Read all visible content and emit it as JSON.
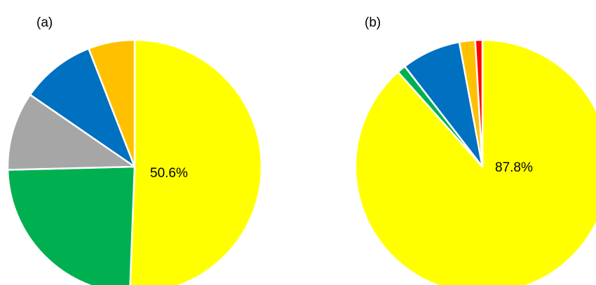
{
  "chart_data": [
    {
      "type": "pie",
      "panel_label": "(a)",
      "start_angle": "12 o'clock",
      "direction": "clockwise",
      "slices": [
        {
          "value": 50.6,
          "color": "#FFFF00",
          "label": "50.6%"
        },
        {
          "value": 24.0,
          "color": "#00B050",
          "label": ""
        },
        {
          "value": 10.0,
          "color": "#A6A6A6",
          "label": ""
        },
        {
          "value": 9.5,
          "color": "#0070C0",
          "label": ""
        },
        {
          "value": 5.9,
          "color": "#FFC000",
          "label": ""
        }
      ]
    },
    {
      "type": "pie",
      "panel_label": "(b)",
      "start_angle": "12 o'clock",
      "direction": "clockwise",
      "slices": [
        {
          "value": 87.8,
          "color": "#FFFF00",
          "label": "87.8%"
        },
        {
          "value": 1.1,
          "color": "#00B050",
          "label": ""
        },
        {
          "value": 7.5,
          "color": "#0070C0",
          "label": ""
        },
        {
          "value": 2.0,
          "color": "#FFC000",
          "label": ""
        },
        {
          "value": 0.9,
          "color": "#FF0000",
          "label": ""
        }
      ]
    }
  ]
}
